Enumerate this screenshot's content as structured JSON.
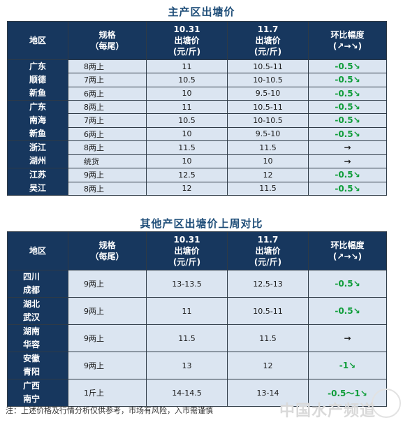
{
  "table1": {
    "title": "主产区出塘价",
    "headers": {
      "region": "地区",
      "spec_l1": "规格",
      "spec_l2": "（每尾）",
      "d1_l1": "10.31",
      "d1_l2": "出塘价",
      "d1_l3": "(元/斤)",
      "d2_l1": "11.7",
      "d2_l2": "出塘价",
      "d2_l3": "(元/斤)",
      "chg_l1": "环比幅度",
      "chg_l2": "(↗→↘)"
    },
    "groups": [
      {
        "region": [
          "广东",
          "顺德",
          "新鱼"
        ],
        "rows": [
          {
            "spec": "8两上",
            "p1": "11",
            "p2": "10.5-11",
            "chg": "-0.5↘"
          },
          {
            "spec": "7两上",
            "p1": "10.5",
            "p2": "10-10.5",
            "chg": "-0.5↘"
          },
          {
            "spec": "6两上",
            "p1": "10",
            "p2": "9.5-10",
            "chg": "-0.5↘"
          }
        ]
      },
      {
        "region": [
          "广东",
          "南海",
          "新鱼"
        ],
        "rows": [
          {
            "spec": "8两上",
            "p1": "11",
            "p2": "10.5-11",
            "chg": "-0.5↘"
          },
          {
            "spec": "7两上",
            "p1": "10.5",
            "p2": "10-10.5",
            "chg": "-0.5↘"
          },
          {
            "spec": "6两上",
            "p1": "10",
            "p2": "9.5-10",
            "chg": "-0.5↘"
          }
        ]
      },
      {
        "region": [
          "浙江",
          "湖州"
        ],
        "rows": [
          {
            "spec": "8两上",
            "p1": "11.5",
            "p2": "11.5",
            "chg": "→"
          },
          {
            "spec": "统货",
            "p1": "10",
            "p2": "10",
            "chg": "→"
          }
        ]
      },
      {
        "region": [
          "江苏",
          "吴江"
        ],
        "rows": [
          {
            "spec": "9两上",
            "p1": "12.5",
            "p2": "12",
            "chg": "-0.5↘"
          },
          {
            "spec": "8两上",
            "p1": "12",
            "p2": "11.5",
            "chg": "-0.5↘"
          }
        ]
      }
    ]
  },
  "table2": {
    "title": "其他产区出塘价上周对比",
    "headers": {
      "region": "地区",
      "spec_l1": "规格",
      "spec_l2": "（每尾）",
      "d1_l1": "10.31",
      "d1_l2": "出塘价",
      "d1_l3": "(元/斤)",
      "d2_l1": "11.7",
      "d2_l2": "出塘价",
      "d2_l3": "(元/斤)",
      "chg_l1": "环比幅度",
      "chg_l2": "(↗→↘)"
    },
    "rows": [
      {
        "region": [
          "四川",
          "成都"
        ],
        "spec": "9两上",
        "p1": "13-13.5",
        "p2": "12.5-13",
        "chg": "-0.5↘"
      },
      {
        "region": [
          "湖北",
          "武汉"
        ],
        "spec": "9两上",
        "p1": "11",
        "p2": "10.5-11",
        "chg": "-0.5↘"
      },
      {
        "region": [
          "湖南",
          "华容"
        ],
        "spec": "9两上",
        "p1": "11.5",
        "p2": "11.5",
        "chg": "→"
      },
      {
        "region": [
          "安徽",
          "青阳"
        ],
        "spec": "9两上",
        "p1": "13",
        "p2": "12",
        "chg": "-1↘"
      },
      {
        "region": [
          "广西",
          "南宁"
        ],
        "spec": "1斤上",
        "p1": "14-14.5",
        "p2": "13-14",
        "chg": "-0.5～1↘"
      }
    ]
  },
  "footer": {
    "note": "注：上述价格及行情分析仅供参考，市场有风险，入市需谨慎",
    "watermark": "中国水产频道"
  },
  "colors": {
    "header_bg": "#17375e",
    "cell_bg": "#dbe5f1",
    "down_green": "#0f9d3a",
    "title_blue": "#1f4e79"
  }
}
